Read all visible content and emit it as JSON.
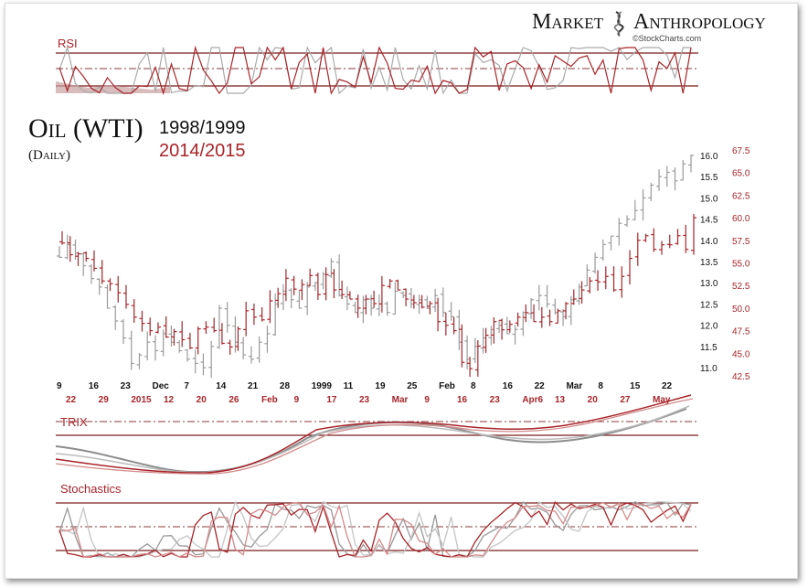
{
  "brand": {
    "name_part1": "Market",
    "name_part2": "Anthropology",
    "credit": "©StockCharts.com"
  },
  "title": {
    "main": "Oil (WTI)",
    "sub": "(Daily)",
    "year_old": "1998/1999",
    "year_new": "2014/2015"
  },
  "colors": {
    "old_series": "#9a9a9a",
    "new_series": "#a8242a",
    "panel_line": "#7a1f1f",
    "dash_line": "#8b3a3a"
  },
  "panels": {
    "rsi_label": "RSI",
    "trix_label": "TRIX",
    "stoch_label": "Stochastics"
  },
  "chart_data": {
    "type": "ohlc_overlay",
    "title": "Oil (WTI) 1998/1999 vs 2014/2015 (Daily)",
    "series": [
      {
        "name": "1998/1999",
        "axis": "left-inner",
        "axis_ticks": [
          "16.0",
          "15.5",
          "15.0",
          "14.5",
          "14.0",
          "13.5",
          "13.0",
          "12.5",
          "12.0",
          "11.5",
          "11.0"
        ],
        "ylim": [
          10.7,
          16.3
        ],
        "closes": [
          13.6,
          13.9,
          13.7,
          13.4,
          13.1,
          12.9,
          12.4,
          12.1,
          11.7,
          11.1,
          11.3,
          11.6,
          11.4,
          11.8,
          11.6,
          11.4,
          11.2,
          11.1,
          11.0,
          11.5,
          12.4,
          12.0,
          11.6,
          11.3,
          11.2,
          11.6,
          11.8,
          12.5,
          12.8,
          12.6,
          12.4,
          12.9,
          13.0,
          13.2,
          13.5,
          12.7,
          12.5,
          12.3,
          12.6,
          12.4,
          12.5,
          12.3,
          12.8,
          12.7,
          12.5,
          12.6,
          12.4,
          12.7,
          12.3,
          12.2,
          11.6,
          11.2,
          11.5,
          11.7,
          11.9,
          12.0,
          11.8,
          11.9,
          12.3,
          12.6,
          12.7,
          12.5,
          12.3,
          12.2,
          12.6,
          12.9,
          13.3,
          13.6,
          13.9,
          14.1,
          14.4,
          14.5,
          14.7,
          15.0,
          15.3,
          15.5,
          15.6,
          15.4,
          15.8,
          16.0
        ]
      },
      {
        "name": "2014/2015",
        "axis": "right",
        "axis_ticks": [
          "67.5",
          "65.0",
          "62.5",
          "60.0",
          "57.5",
          "55.0",
          "52.5",
          "50.0",
          "47.5",
          "45.0",
          "42.5"
        ],
        "ylim": [
          42.0,
          68.3
        ],
        "closes": [
          57.2,
          55.9,
          56.0,
          55.5,
          54.4,
          53.0,
          52.7,
          51.7,
          50.4,
          49.0,
          48.3,
          47.5,
          47.9,
          46.8,
          47.4,
          46.5,
          45.6,
          47.7,
          47.9,
          47.5,
          46.1,
          45.7,
          47.7,
          49.7,
          49.0,
          48.7,
          50.8,
          51.6,
          53.3,
          52.1,
          52.6,
          53.6,
          51.5,
          53.7,
          52.0,
          51.5,
          51.0,
          50.0,
          51.0,
          50.5,
          52.5,
          53.0,
          52.0,
          51.0,
          50.6,
          50.1,
          50.5,
          48.5,
          48.1,
          47.5,
          44.0,
          43.3,
          45.8,
          47.0,
          48.5,
          47.6,
          48.2,
          49.0,
          49.5,
          48.5,
          49.0,
          48.5,
          49.7,
          50.5,
          51.0,
          52.0,
          53.0,
          52.9,
          53.5,
          52.0,
          53.5,
          55.5,
          57.5,
          58.0,
          56.5,
          57.0,
          57.0,
          58.0,
          56.5,
          60.0
        ]
      }
    ],
    "x_ticks_old": [
      "9",
      "16",
      "23",
      "Dec",
      "7",
      "14",
      "21",
      "28",
      "1999",
      "11",
      "19",
      "25",
      "Feb",
      "8",
      "16",
      "22",
      "Mar",
      "8",
      "15",
      "22"
    ],
    "x_ticks_new": [
      "22",
      "29",
      "2015",
      "12",
      "20",
      "26",
      "Feb",
      "9",
      "17",
      "23",
      "Mar",
      "9",
      "16",
      "23",
      "Apr6",
      "13",
      "20",
      "27",
      "May"
    ],
    "indicators": [
      "RSI",
      "TRIX",
      "Stochastics"
    ]
  }
}
